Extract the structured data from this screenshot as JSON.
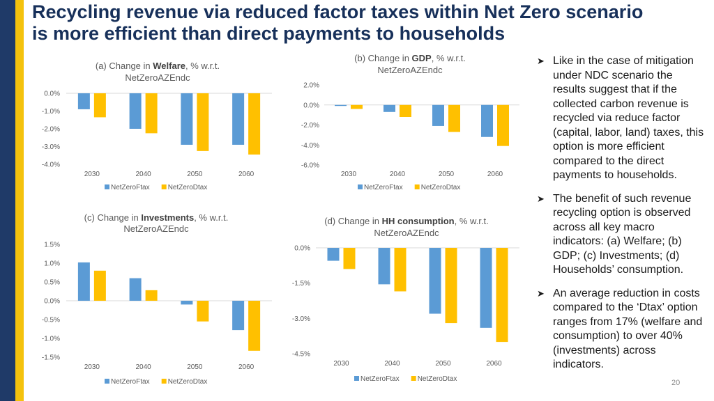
{
  "slide": {
    "title_line1": "Recycling revenue via reduced factor taxes within Net Zero scenario",
    "title_line2": "is more efficient than direct payments to households",
    "page_number": "20",
    "colors": {
      "navy": "#1f3a68",
      "gold": "#f4c20d",
      "title": "#17305a"
    }
  },
  "bullets": [
    "Like in the case of mitigation under NDC scenario the results suggest that if the collected carbon revenue is recycled via reduce factor (capital, labor, land) taxes, this option is more efficient compared to the direct payments to households.",
    "The benefit of such revenue recycling option is observed across all key macro indicators: (a) Welfare; (b) GDP; (c) Investments; (d) Households’ consumption.",
    "An average reduction in costs compared to the ‘Dtax’ option ranges from 17% (welfare and consumption) to over 40% (investments) across indicators."
  ],
  "chart_data": [
    {
      "type": "bar",
      "title_prefix": "(a) Change in ",
      "title_bold": "Welfare",
      "title_suffix": ", % w.r.t.",
      "title_line2": "NetZeroAZEndc",
      "categories": [
        "2030",
        "2040",
        "2050",
        "2060"
      ],
      "series": [
        {
          "name": "NetZeroFtax",
          "color": "#5b9bd5",
          "values": [
            -0.9,
            -2.0,
            -2.9,
            -2.9
          ]
        },
        {
          "name": "NetZeroDtax",
          "color": "#ffc000",
          "values": [
            -1.35,
            -2.25,
            -3.25,
            -3.45
          ]
        }
      ],
      "ylim": [
        -4.0,
        0.0
      ],
      "yticks": [
        0.0,
        -1.0,
        -2.0,
        -3.0,
        -4.0
      ],
      "ytick_labels": [
        "0.0%",
        "-1.0%",
        "-2.0%",
        "-3.0%",
        "-4.0%"
      ]
    },
    {
      "type": "bar",
      "title_prefix": "(b) Change in ",
      "title_bold": "GDP",
      "title_suffix": ", % w.r.t.",
      "title_line2": "NetZeroAZEndc",
      "categories": [
        "2030",
        "2040",
        "2050",
        "2060"
      ],
      "series": [
        {
          "name": "NetZeroFtax",
          "color": "#5b9bd5",
          "values": [
            -0.1,
            -0.7,
            -2.1,
            -3.2
          ]
        },
        {
          "name": "NetZeroDtax",
          "color": "#ffc000",
          "values": [
            -0.4,
            -1.2,
            -2.7,
            -4.1
          ]
        }
      ],
      "ylim": [
        -6.0,
        2.0
      ],
      "yticks": [
        2.0,
        0.0,
        -2.0,
        -4.0,
        -6.0
      ],
      "ytick_labels": [
        "2.0%",
        "0.0%",
        "-2.0%",
        "-4.0%",
        "-6.0%"
      ]
    },
    {
      "type": "bar",
      "title_prefix": "(c) Change in ",
      "title_bold": "Investments",
      "title_suffix": ", % w.r.t.",
      "title_line2": "NetZeroAZEndc",
      "categories": [
        "2030",
        "2040",
        "2050",
        "2060"
      ],
      "series": [
        {
          "name": "NetZeroFtax",
          "color": "#5b9bd5",
          "values": [
            1.02,
            0.6,
            -0.1,
            -0.78
          ]
        },
        {
          "name": "NetZeroDtax",
          "color": "#ffc000",
          "values": [
            0.8,
            0.28,
            -0.55,
            -1.33
          ]
        }
      ],
      "ylim": [
        -1.5,
        1.5
      ],
      "yticks": [
        1.5,
        1.0,
        0.5,
        0.0,
        -0.5,
        -1.0,
        -1.5
      ],
      "ytick_labels": [
        "1.5%",
        "1.0%",
        "0.5%",
        "0.0%",
        "-0.5%",
        "-1.0%",
        "-1.5%"
      ]
    },
    {
      "type": "bar",
      "title_prefix": "(d) Change in ",
      "title_bold": "HH consumption",
      "title_suffix": ", % w.r.t.",
      "title_line2": "NetZeroAZEndc",
      "categories": [
        "2030",
        "2040",
        "2050",
        "2060"
      ],
      "series": [
        {
          "name": "NetZeroFtax",
          "color": "#5b9bd5",
          "values": [
            -0.55,
            -1.55,
            -2.8,
            -3.4
          ]
        },
        {
          "name": "NetZeroDtax",
          "color": "#ffc000",
          "values": [
            -0.9,
            -1.85,
            -3.2,
            -4.0
          ]
        }
      ],
      "ylim": [
        -4.5,
        0.0
      ],
      "yticks": [
        0.0,
        -1.5,
        -3.0,
        -4.5
      ],
      "ytick_labels": [
        "0.0%",
        "-1.5%",
        "-3.0%",
        "-4.5%"
      ]
    }
  ]
}
